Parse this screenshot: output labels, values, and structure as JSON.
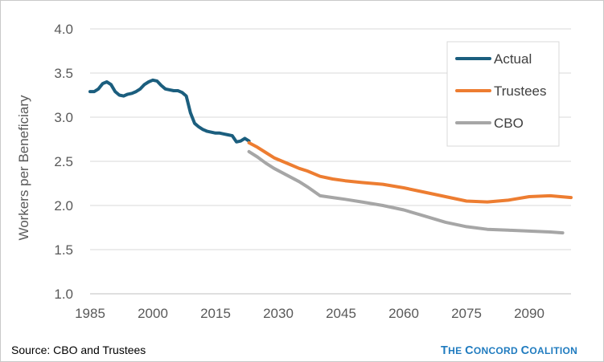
{
  "chart_data": {
    "type": "line",
    "title": "",
    "xlabel": "",
    "ylabel": "Workers per Beneficiary",
    "xlim": [
      1985,
      2100
    ],
    "ylim": [
      1.0,
      4.0
    ],
    "x_ticks": [
      1985,
      2000,
      2015,
      2030,
      2045,
      2060,
      2075,
      2090
    ],
    "x_tick_labels": [
      "1985",
      "2000",
      "2015",
      "2030",
      "2045",
      "2060",
      "2075",
      "2090"
    ],
    "y_ticks": [
      1.0,
      1.5,
      2.0,
      2.5,
      3.0,
      3.5,
      4.0
    ],
    "y_tick_labels": [
      "1.0",
      "1.5",
      "2.0",
      "2.5",
      "3.0",
      "3.5",
      "4.0"
    ],
    "grid": "horizontal",
    "legend_position": "top-right",
    "series": [
      {
        "name": "Actual",
        "color": "#1b5e7e",
        "x": [
          1985,
          1986,
          1987,
          1988,
          1989,
          1990,
          1991,
          1992,
          1993,
          1994,
          1995,
          1996,
          1997,
          1998,
          1999,
          2000,
          2001,
          2002,
          2003,
          2004,
          2005,
          2006,
          2007,
          2008,
          2009,
          2010,
          2011,
          2012,
          2013,
          2014,
          2015,
          2016,
          2017,
          2018,
          2019,
          2020,
          2021,
          2022,
          2023
        ],
        "y": [
          3.29,
          3.29,
          3.32,
          3.38,
          3.4,
          3.37,
          3.29,
          3.25,
          3.24,
          3.26,
          3.27,
          3.29,
          3.32,
          3.37,
          3.4,
          3.42,
          3.41,
          3.36,
          3.32,
          3.31,
          3.3,
          3.3,
          3.28,
          3.24,
          3.05,
          2.93,
          2.89,
          2.86,
          2.84,
          2.83,
          2.82,
          2.82,
          2.81,
          2.8,
          2.79,
          2.72,
          2.73,
          2.76,
          2.73
        ]
      },
      {
        "name": "Trustees",
        "color": "#ed7d31",
        "x": [
          2023,
          2025,
          2027,
          2029,
          2031,
          2033,
          2035,
          2037,
          2040,
          2043,
          2046,
          2050,
          2055,
          2060,
          2065,
          2070,
          2075,
          2080,
          2085,
          2090,
          2095,
          2100
        ],
        "y": [
          2.71,
          2.66,
          2.6,
          2.54,
          2.5,
          2.46,
          2.42,
          2.39,
          2.33,
          2.3,
          2.28,
          2.26,
          2.24,
          2.2,
          2.15,
          2.1,
          2.05,
          2.04,
          2.06,
          2.1,
          2.11,
          2.09
        ]
      },
      {
        "name": "CBO",
        "color": "#a6a6a6",
        "x": [
          2023,
          2025,
          2027,
          2029,
          2031,
          2033,
          2035,
          2037,
          2040,
          2043,
          2046,
          2050,
          2055,
          2060,
          2065,
          2070,
          2075,
          2080,
          2085,
          2090,
          2095,
          2098
        ],
        "y": [
          2.61,
          2.55,
          2.48,
          2.42,
          2.37,
          2.32,
          2.27,
          2.21,
          2.11,
          2.09,
          2.07,
          2.04,
          2.0,
          1.95,
          1.88,
          1.81,
          1.76,
          1.73,
          1.72,
          1.71,
          1.7,
          1.69
        ]
      }
    ]
  },
  "footer": {
    "source": "Source: CBO and Trustees",
    "brand_parts": [
      {
        "text": "T",
        "big": true
      },
      {
        "text": "he ",
        "big": false
      },
      {
        "text": "C",
        "big": true
      },
      {
        "text": "oncord ",
        "big": false
      },
      {
        "text": "C",
        "big": true
      },
      {
        "text": "oalition",
        "big": false
      }
    ]
  }
}
